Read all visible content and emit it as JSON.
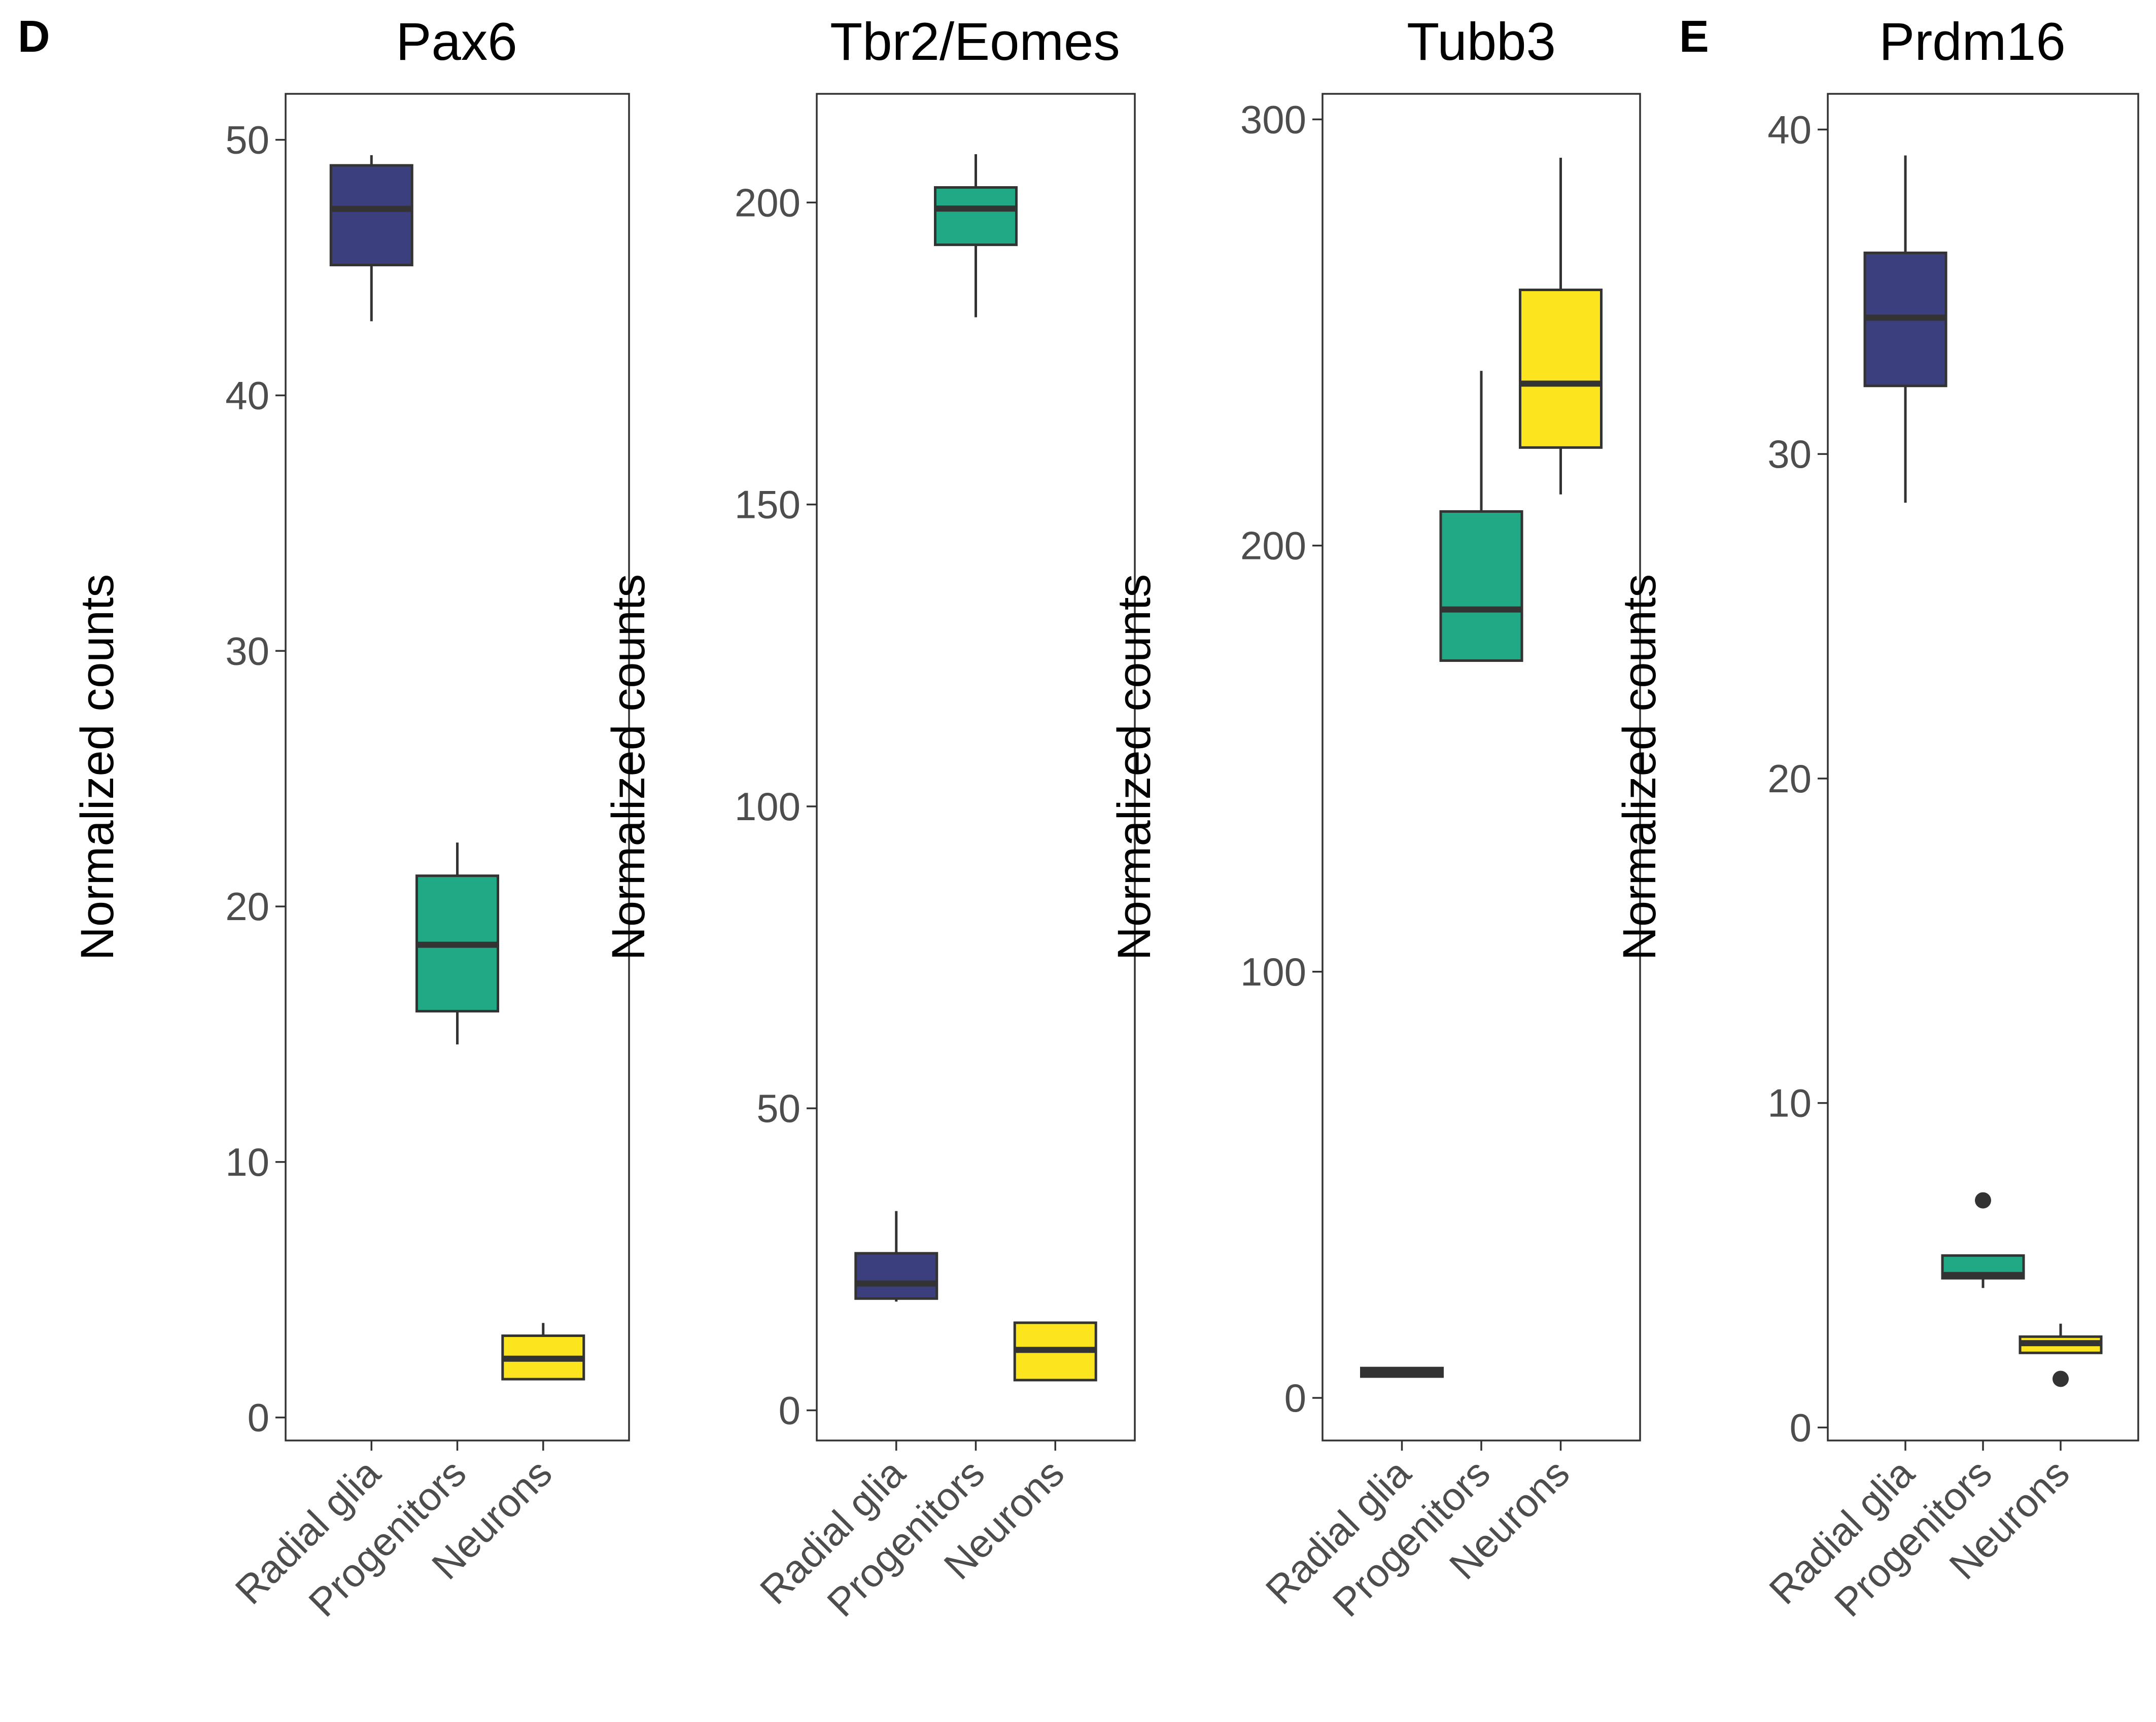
{
  "panel_letters": [
    "D",
    "E"
  ],
  "colors": {
    "Radial glia": "#3b3f7e",
    "Progenitors": "#21a884",
    "Neurons": "#fce51e"
  },
  "chart_data": [
    {
      "type": "box",
      "title": "Pax6",
      "ylabel": "Normalized counts",
      "categories": [
        "Radial glia",
        "Progenitors",
        "Neurons"
      ],
      "yticks": [
        0,
        10,
        20,
        30,
        40,
        50
      ],
      "ylim": [
        -0.9,
        51.8
      ],
      "boxes": [
        {
          "min": 42.9,
          "q1": 45.1,
          "median": 47.3,
          "q3": 49.0,
          "max": 49.4,
          "outliers": []
        },
        {
          "min": 14.6,
          "q1": 15.9,
          "median": 18.5,
          "q3": 21.2,
          "max": 22.5,
          "outliers": []
        },
        {
          "min": 1.5,
          "q1": 1.5,
          "median": 2.3,
          "q3": 3.2,
          "max": 3.7,
          "outliers": []
        }
      ]
    },
    {
      "type": "box",
      "title": "Tbr2/Eomes",
      "ylabel": "Normalized counts",
      "categories": [
        "Radial glia",
        "Progenitors",
        "Neurons"
      ],
      "yticks": [
        0,
        50,
        100,
        150,
        200
      ],
      "ylim": [
        -5,
        218
      ],
      "boxes": [
        {
          "min": 18.0,
          "q1": 18.5,
          "median": 21.0,
          "q3": 26.0,
          "max": 33.0,
          "outliers": []
        },
        {
          "min": 181.0,
          "q1": 193.0,
          "median": 199.0,
          "q3": 202.5,
          "max": 208.0,
          "outliers": []
        },
        {
          "min": 5.0,
          "q1": 5.0,
          "median": 10.0,
          "q3": 14.5,
          "max": 14.5,
          "outliers": []
        }
      ]
    },
    {
      "type": "box",
      "title": "Tubb3",
      "ylabel": "Normalized counts",
      "categories": [
        "Radial glia",
        "Progenitors",
        "Neurons"
      ],
      "yticks": [
        0,
        100,
        200,
        300
      ],
      "ylim": [
        -10,
        306
      ],
      "boxes": [
        {
          "min": 5.0,
          "q1": 5.0,
          "median": 6.0,
          "q3": 7.0,
          "max": 7.0,
          "outliers": []
        },
        {
          "min": 173.0,
          "q1": 173.0,
          "median": 185.0,
          "q3": 208.0,
          "max": 241.0,
          "outliers": []
        },
        {
          "min": 212.0,
          "q1": 223.0,
          "median": 238.0,
          "q3": 260.0,
          "max": 291.0,
          "outliers": []
        }
      ]
    },
    {
      "type": "box",
      "title": "Prdm16",
      "ylabel": "Normalized counts",
      "categories": [
        "Radial glia",
        "Progenitors",
        "Neurons"
      ],
      "yticks": [
        0,
        10,
        20,
        30,
        40
      ],
      "ylim": [
        -0.4,
        41.1
      ],
      "boxes": [
        {
          "min": 28.5,
          "q1": 32.1,
          "median": 34.2,
          "q3": 36.2,
          "max": 39.2,
          "outliers": []
        },
        {
          "min": 4.3,
          "q1": 4.6,
          "median": 4.7,
          "q3": 5.3,
          "max": 5.3,
          "outliers": [
            7.0
          ]
        },
        {
          "min": 2.3,
          "q1": 2.3,
          "median": 2.6,
          "q3": 2.8,
          "max": 3.2,
          "outliers": [
            1.5
          ]
        }
      ]
    }
  ]
}
